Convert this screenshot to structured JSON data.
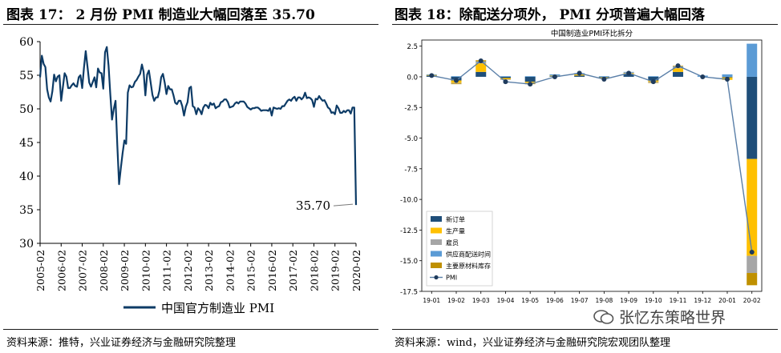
{
  "titles": {
    "left": "图表 17： 2 月份 PMI 制造业大幅回落至 35.70",
    "right": "图表 18：除配送分项外， PMI 分项普遍大幅回落"
  },
  "sources": {
    "left": "资料来源：推特，兴业证券经济与金融研究院整理",
    "right": "资料来源：wind，兴业证券经济与金融研究院宏观团队整理"
  },
  "watermark": "张忆东策略世界",
  "colors": {
    "line": "#0d3b66",
    "navy": "#1f4e79",
    "yellow": "#ffc000",
    "gray": "#a6a6a6",
    "blue": "#5b9bd5",
    "gold": "#bf9000",
    "pmi": "#2e6da4"
  },
  "chart_data": [
    {
      "type": "line",
      "title": "",
      "legend": "中国官方制造业 PMI",
      "ylim": [
        30,
        60
      ],
      "yticks": [
        "30",
        "35",
        "40",
        "45",
        "50",
        "55",
        "60"
      ],
      "xticks": [
        "2005-02",
        "2006-02",
        "2007-02",
        "2008-02",
        "2009-02",
        "2010-02",
        "2011-02",
        "2012-02",
        "2013-02",
        "2014-02",
        "2015-02",
        "2016-02",
        "2017-02",
        "2018-02",
        "2019-02",
        "2020-02"
      ],
      "annotation": "35.70",
      "x_start_year": 2005.0833,
      "x_step_months": 1,
      "values": [
        54.7,
        57.9,
        56.7,
        56.2,
        52.9,
        51.7,
        51.1,
        52.6,
        55.1,
        54.1,
        54.8,
        55.0,
        51.2,
        53.3,
        55.3,
        54.8,
        53.1,
        53.1,
        53.5,
        53.8,
        53.4,
        53.3,
        54.7,
        55.0,
        53.1,
        56.1,
        58.6,
        56.3,
        53.9,
        53.3,
        54.0,
        54.7,
        53.2,
        56.0,
        55.4,
        55.3,
        53.0,
        58.4,
        59.2,
        56.4,
        52.1,
        48.4,
        50.0,
        51.2,
        44.6,
        38.8,
        41.2,
        43.4,
        45.3,
        44.8,
        52.4,
        53.5,
        53.2,
        53.3,
        54.0,
        54.3,
        54.8,
        55.2,
        56.6,
        55.5,
        52.0,
        55.1,
        55.7,
        53.9,
        52.1,
        51.2,
        51.7,
        51.7,
        52.7,
        54.7,
        55.2,
        53.9,
        52.2,
        53.4,
        52.9,
        52.9,
        52.0,
        50.9,
        50.7,
        51.2,
        51.2,
        50.4,
        49.0,
        50.3,
        51.0,
        53.1,
        53.3,
        50.4,
        50.2,
        49.2,
        50.1,
        49.8,
        49.2,
        50.2,
        50.6,
        50.5,
        50.1,
        50.9,
        50.6,
        50.8,
        50.1,
        50.3,
        50.4,
        51.0,
        51.1,
        51.4,
        51.4,
        51.0,
        50.2,
        50.3,
        50.4,
        50.8,
        51.0,
        50.8,
        51.1,
        51.1,
        51.1,
        50.8,
        50.3,
        50.1,
        49.9,
        50.1,
        50.1,
        50.2,
        50.2,
        50.0,
        49.7,
        49.8,
        49.8,
        49.8,
        49.7,
        50.1,
        49.0,
        50.2,
        50.1,
        50.0,
        50.1,
        50.0,
        50.4,
        50.4,
        50.8,
        51.2,
        51.4,
        51.2,
        51.6,
        51.8,
        51.2,
        51.7,
        51.7,
        51.4,
        51.7,
        52.4,
        51.6,
        51.7,
        51.6,
        51.3,
        50.3,
        51.5,
        51.4,
        51.9,
        51.5,
        51.2,
        51.3,
        50.8,
        50.2,
        50.0,
        49.4,
        49.5,
        49.2,
        50.5,
        50.1,
        49.4,
        49.4,
        49.7,
        49.5,
        49.8,
        49.8,
        49.3,
        50.2,
        50.2,
        35.7
      ]
    },
    {
      "type": "bar",
      "title": "中国制造业PMI环比拆分",
      "categories": [
        "19-01",
        "19-02",
        "19-03",
        "19-04",
        "19-05",
        "19-06",
        "19-07",
        "19-08",
        "19-09",
        "19-10",
        "19-11",
        "19-12",
        "20-01",
        "20-02"
      ],
      "ylim": [
        -17.5,
        3.0
      ],
      "yticks": [
        "2.5",
        "0.0",
        "-2.5",
        "-5.0",
        "-7.5",
        "-10.0",
        "-12.5",
        "-15.0",
        "-17.5"
      ],
      "series": [
        {
          "name": "新订单",
          "values": [
            0.1,
            -0.3,
            0.4,
            -0.1,
            -0.4,
            0.05,
            0.1,
            -0.05,
            0.2,
            -0.3,
            0.4,
            0.0,
            -0.05,
            -6.7
          ]
        },
        {
          "name": "生产量",
          "values": [
            0.05,
            -0.2,
            0.7,
            -0.1,
            -0.1,
            0.05,
            0.1,
            -0.05,
            0.1,
            -0.1,
            0.3,
            0.0,
            -0.2,
            -7.9
          ]
        },
        {
          "name": "雇员",
          "values": [
            0.0,
            -0.05,
            0.1,
            -0.05,
            -0.05,
            0.0,
            0.0,
            0.0,
            0.05,
            -0.05,
            0.1,
            0.0,
            0.0,
            -1.4
          ]
        },
        {
          "name": "供应商配送时间",
          "values": [
            0.05,
            0.05,
            0.05,
            0.05,
            0.05,
            0.1,
            0.1,
            0.05,
            0.05,
            0.05,
            0.05,
            0.1,
            0.2,
            2.7
          ]
        },
        {
          "name": "主要原材料库存",
          "values": [
            0.0,
            -0.05,
            0.1,
            0.0,
            -0.05,
            0.0,
            0.0,
            0.0,
            0.0,
            -0.05,
            0.05,
            0.0,
            0.0,
            -1.0
          ]
        }
      ],
      "line": {
        "name": "PMI",
        "values": [
          0.1,
          -0.3,
          1.3,
          -0.4,
          -0.6,
          0.0,
          0.3,
          -0.2,
          0.3,
          -0.4,
          0.9,
          0.0,
          -0.2,
          -14.3
        ]
      }
    }
  ]
}
